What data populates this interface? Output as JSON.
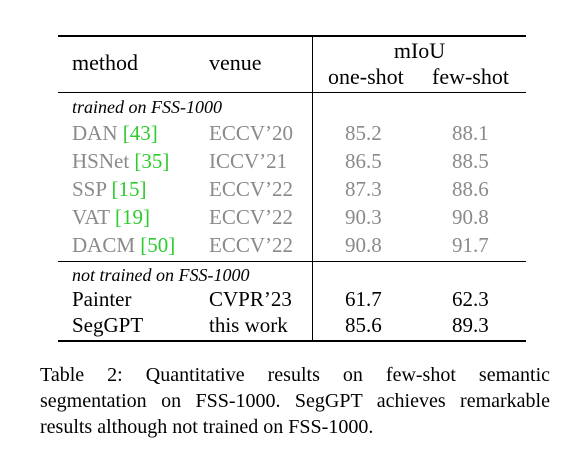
{
  "table": {
    "headers": {
      "method": "method",
      "venue": "venue",
      "miou": "mIoU",
      "one_shot": "one-shot",
      "few_shot": "few-shot"
    },
    "groups": [
      {
        "label": "trained on FSS-1000",
        "rows": [
          {
            "method": "DAN",
            "cite": "[43]",
            "venue": "ECCV’20",
            "one_shot": "85.2",
            "few_shot": "88.1"
          },
          {
            "method": "HSNet",
            "cite": "[35]",
            "venue": "ICCV’21",
            "one_shot": "86.5",
            "few_shot": "88.5"
          },
          {
            "method": "SSP",
            "cite": "[15]",
            "venue": "ECCV’22",
            "one_shot": "87.3",
            "few_shot": "88.6"
          },
          {
            "method": "VAT",
            "cite": "[19]",
            "venue": "ECCV’22",
            "one_shot": "90.3",
            "few_shot": "90.8"
          },
          {
            "method": "DACM",
            "cite": "[50]",
            "venue": "ECCV’22",
            "one_shot": "90.8",
            "few_shot": "91.7"
          }
        ]
      },
      {
        "label": "not trained on FSS-1000",
        "rows": [
          {
            "method": "Painter",
            "venue": "CVPR’23",
            "one_shot": "61.7",
            "few_shot": "62.3"
          },
          {
            "method": "SegGPT",
            "venue": "this work",
            "one_shot": "85.6",
            "few_shot": "89.3"
          }
        ]
      }
    ]
  },
  "caption": "Table 2: Quantitative results on few-shot semantic segmentation on FSS-1000. SegGPT achieves remarkable results although not trained on FSS-1000.",
  "colors": {
    "muted_text": "#8a8a8a",
    "citation": "#2ecc2e"
  }
}
